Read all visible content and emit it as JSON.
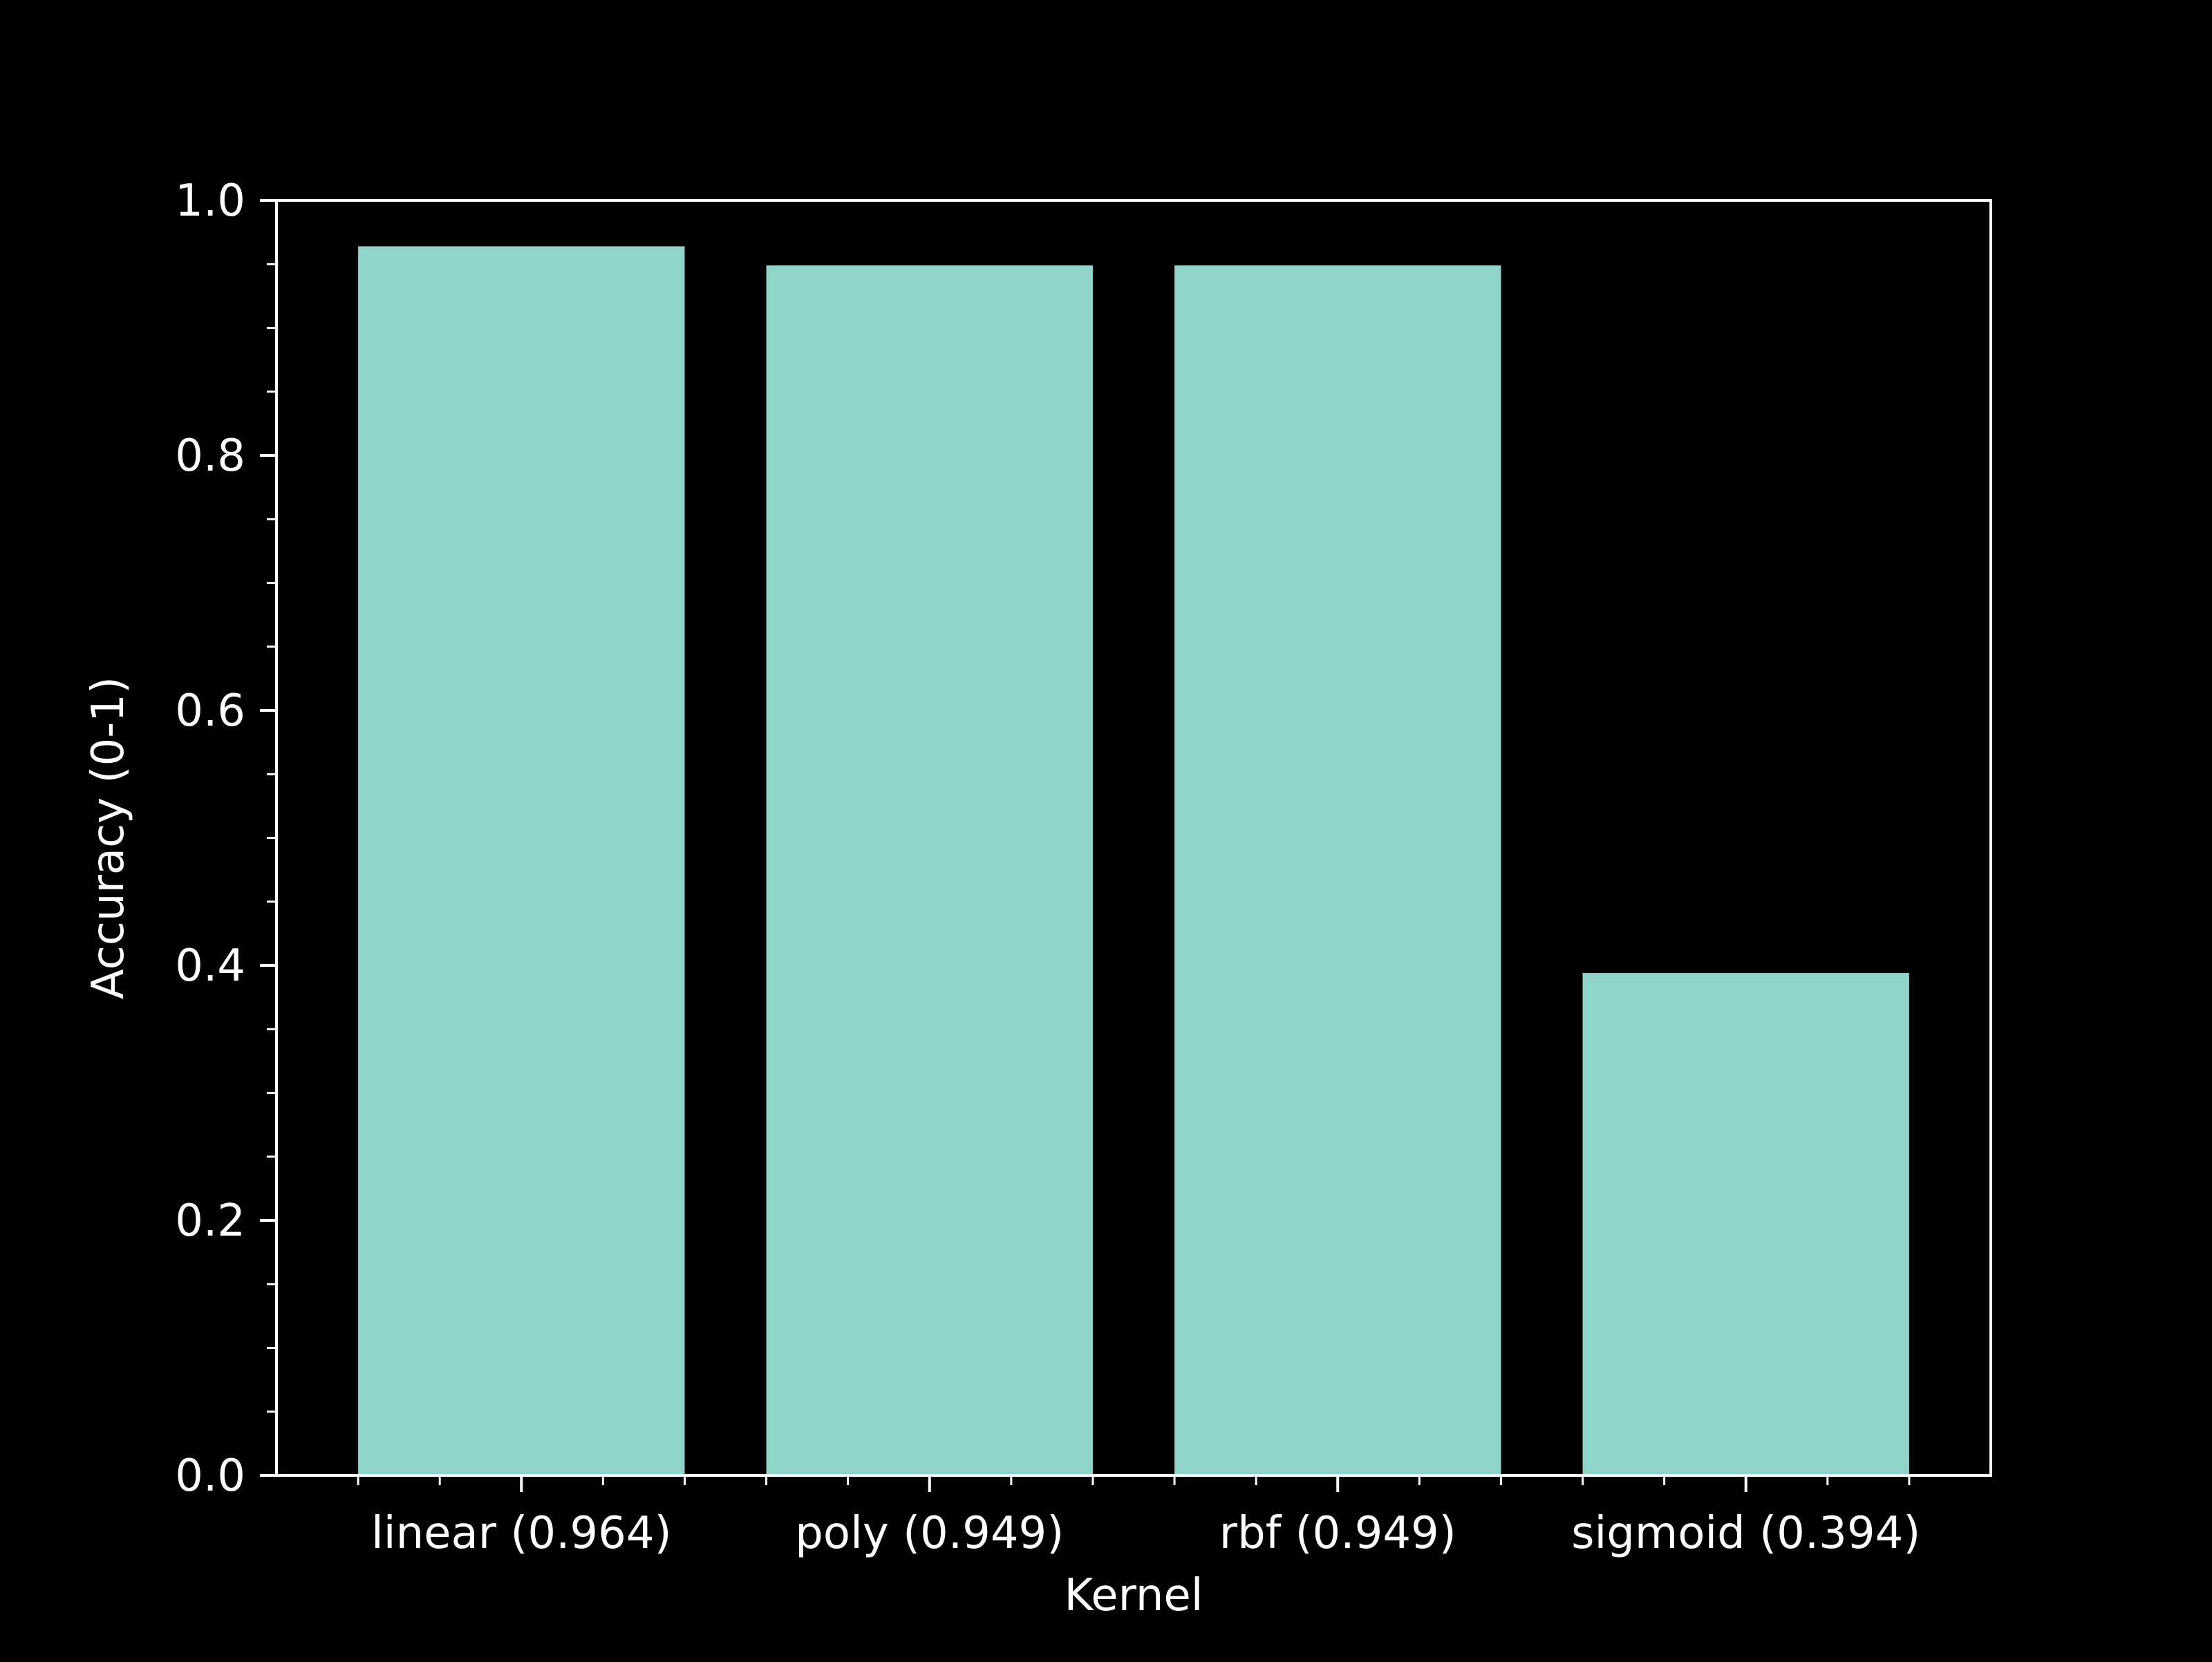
{
  "chart_data": {
    "type": "bar",
    "title": "",
    "xlabel": "Kernel",
    "ylabel": "Accuracy (0-1)",
    "categories": [
      "linear (0.964)",
      "poly (0.949)",
      "rbf (0.949)",
      "sigmoid (0.394)"
    ],
    "values": [
      0.964,
      0.949,
      0.949,
      0.394
    ],
    "ylim": [
      0,
      1
    ],
    "yticks": [
      "0.0",
      "0.2",
      "0.4",
      "0.6",
      "0.8",
      "1.0"
    ],
    "grid": false,
    "legend": "none",
    "colors": {
      "background": "#000000",
      "bar": "#8ed4c9",
      "axis": "#ffffff",
      "text": "#ffffff"
    }
  }
}
